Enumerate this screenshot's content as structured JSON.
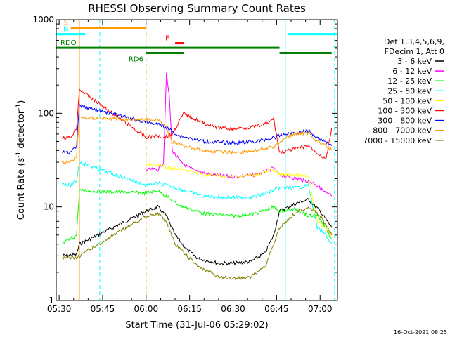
{
  "chart_data": {
    "type": "line",
    "title": "RHESSI Observing Summary Count Rates",
    "xlabel": "Start Time (31-Jul-06 05:29:02)",
    "ylabel_prefix": "Count Rate (s",
    "ylabel_sup": "-1",
    "ylabel_mid": " detector",
    "ylabel_suffix": ")",
    "y_scale": "log",
    "ylim": [
      1,
      1000
    ],
    "xlim": [
      "05:29",
      "07:06"
    ],
    "x_ticks": [
      "05:30",
      "05:45",
      "06:00",
      "06:15",
      "06:30",
      "06:45",
      "07:00"
    ],
    "y_ticks": [
      "1",
      "10",
      "100",
      "1000"
    ],
    "legend": {
      "placement": "right",
      "header_lines": [
        "Det 1,3,4,5,6,9,",
        "FDecim 1, Att 0"
      ]
    },
    "series": [
      {
        "name": "3 - 6 keV",
        "color": "#000000",
        "points": [
          [
            "05:31",
            3.0
          ],
          [
            "05:36",
            3.1
          ],
          [
            "05:37",
            4
          ],
          [
            "06:00",
            9
          ],
          [
            "06:04",
            10
          ],
          [
            "06:07",
            8
          ],
          [
            "06:10",
            5
          ],
          [
            "06:14",
            3.5
          ],
          [
            "06:18",
            2.8
          ],
          [
            "06:25",
            2.5
          ],
          [
            "06:30",
            2.5
          ],
          [
            "06:36",
            2.6
          ],
          [
            "06:41",
            3.2
          ],
          [
            "06:44",
            5
          ],
          [
            "06:46",
            9
          ],
          [
            "06:52",
            11
          ],
          [
            "06:56",
            12
          ],
          [
            "07:00",
            9
          ],
          [
            "07:04",
            6
          ]
        ]
      },
      {
        "name": "6 - 12 keV",
        "color": "#ff00ff",
        "points": [
          [
            "06:00",
            25
          ],
          [
            "06:04",
            25
          ],
          [
            "06:06",
            30
          ],
          [
            "06:07",
            260
          ],
          [
            "06:08",
            150
          ],
          [
            "06:09",
            40
          ],
          [
            "06:12",
            30
          ],
          [
            "06:15",
            26
          ],
          [
            "06:22",
            22
          ],
          [
            "06:30",
            21
          ],
          [
            "06:38",
            22
          ],
          [
            "06:44",
            26
          ],
          [
            "06:46",
            22
          ],
          [
            "06:52",
            20
          ],
          [
            "06:58",
            18
          ],
          [
            "07:02",
            14
          ],
          [
            "07:04",
            13
          ]
        ]
      },
      {
        "name": "12 - 25 keV",
        "color": "#00ff00",
        "points": [
          [
            "05:31",
            4.0
          ],
          [
            "05:36",
            5
          ],
          [
            "05:37",
            15
          ],
          [
            "06:00",
            14
          ],
          [
            "06:04",
            15
          ],
          [
            "06:07",
            13
          ],
          [
            "06:10",
            11
          ],
          [
            "06:13",
            10
          ],
          [
            "06:20",
            8.5
          ],
          [
            "06:30",
            8
          ],
          [
            "06:38",
            8.5
          ],
          [
            "06:44",
            10
          ],
          [
            "06:46",
            9
          ],
          [
            "06:52",
            9.5
          ],
          [
            "06:56",
            8
          ],
          [
            "06:59",
            8
          ],
          [
            "07:02",
            6
          ],
          [
            "07:04",
            4.5
          ]
        ]
      },
      {
        "name": "25 - 50 keV",
        "color": "#00ffff",
        "points": [
          [
            "05:31",
            18
          ],
          [
            "05:34",
            17
          ],
          [
            "05:36",
            19
          ],
          [
            "05:37",
            30
          ],
          [
            "06:00",
            17
          ],
          [
            "06:04",
            18
          ],
          [
            "06:07",
            17
          ],
          [
            "06:10",
            16
          ],
          [
            "06:13",
            15
          ],
          [
            "06:20",
            13
          ],
          [
            "06:30",
            12.5
          ],
          [
            "06:38",
            13
          ],
          [
            "06:44",
            15
          ],
          [
            "06:46",
            16
          ],
          [
            "06:52",
            16
          ],
          [
            "06:56",
            17
          ],
          [
            "06:59",
            6
          ],
          [
            "07:02",
            5
          ],
          [
            "07:04",
            4
          ]
        ]
      },
      {
        "name": "50 - 100 keV",
        "color": "#ffff00",
        "points": [
          [
            "06:00",
            28
          ],
          [
            "06:04",
            28
          ],
          [
            "06:08",
            26
          ],
          [
            "06:13",
            25
          ],
          [
            "06:20",
            22
          ],
          [
            "06:30",
            21
          ],
          [
            "06:38",
            22
          ],
          [
            "06:44",
            25
          ],
          [
            "06:46",
            22
          ],
          [
            "06:52",
            22
          ],
          [
            "06:56",
            21
          ],
          [
            "06:59",
            7
          ],
          [
            "07:02",
            6
          ],
          [
            "07:04",
            5
          ]
        ]
      },
      {
        "name": "100 - 300 keV",
        "color": "#ff0000",
        "points": [
          [
            "05:31",
            55
          ],
          [
            "05:34",
            55
          ],
          [
            "05:36",
            70
          ],
          [
            "05:37",
            180
          ],
          [
            "06:00",
            55
          ],
          [
            "06:04",
            58
          ],
          [
            "06:06",
            55
          ],
          [
            "06:09",
            60
          ],
          [
            "06:13",
            100
          ],
          [
            "06:16",
            90
          ],
          [
            "06:20",
            78
          ],
          [
            "06:25",
            70
          ],
          [
            "06:30",
            68
          ],
          [
            "06:38",
            72
          ],
          [
            "06:42",
            78
          ],
          [
            "06:44",
            88
          ],
          [
            "06:46",
            38
          ],
          [
            "06:52",
            42
          ],
          [
            "06:56",
            45
          ],
          [
            "06:59",
            38
          ],
          [
            "07:02",
            32
          ],
          [
            "07:04",
            70
          ]
        ]
      },
      {
        "name": "300 - 800 keV",
        "color": "#0000ff",
        "points": [
          [
            "05:31",
            38
          ],
          [
            "05:34",
            38
          ],
          [
            "05:36",
            45
          ],
          [
            "05:37",
            120
          ],
          [
            "06:00",
            80
          ],
          [
            "06:05",
            75
          ],
          [
            "06:09",
            65
          ],
          [
            "06:11",
            58
          ],
          [
            "06:14",
            55
          ],
          [
            "06:20",
            50
          ],
          [
            "06:30",
            48
          ],
          [
            "06:38",
            50
          ],
          [
            "06:44",
            55
          ],
          [
            "06:48",
            60
          ],
          [
            "06:52",
            62
          ],
          [
            "06:56",
            65
          ],
          [
            "06:59",
            55
          ],
          [
            "07:02",
            50
          ],
          [
            "07:04",
            45
          ]
        ]
      },
      {
        "name": "800 - 7000 keV",
        "color": "#ff9900",
        "points": [
          [
            "05:31",
            30
          ],
          [
            "05:34",
            30
          ],
          [
            "05:36",
            35
          ],
          [
            "05:37",
            90
          ],
          [
            "06:00",
            85
          ],
          [
            "06:04",
            85
          ],
          [
            "06:07",
            70
          ],
          [
            "06:09",
            50
          ],
          [
            "06:13",
            45
          ],
          [
            "06:20",
            40
          ],
          [
            "06:30",
            38
          ],
          [
            "06:38",
            40
          ],
          [
            "06:44",
            44
          ],
          [
            "06:48",
            55
          ],
          [
            "06:52",
            60
          ],
          [
            "06:56",
            62
          ],
          [
            "06:59",
            50
          ],
          [
            "07:02",
            45
          ],
          [
            "07:04",
            40
          ]
        ]
      },
      {
        "name": "7000 - 15000 keV",
        "color": "#808000",
        "points": [
          [
            "05:31",
            2.8
          ],
          [
            "05:36",
            2.9
          ],
          [
            "05:37",
            3
          ],
          [
            "06:00",
            8
          ],
          [
            "06:04",
            8.5
          ],
          [
            "06:07",
            7
          ],
          [
            "06:10",
            4
          ],
          [
            "06:14",
            3
          ],
          [
            "06:18",
            2.3
          ],
          [
            "06:25",
            1.8
          ],
          [
            "06:30",
            1.7
          ],
          [
            "06:36",
            1.8
          ],
          [
            "06:41",
            2.3
          ],
          [
            "06:44",
            4
          ],
          [
            "06:46",
            6
          ],
          [
            "06:52",
            9
          ],
          [
            "06:56",
            10
          ],
          [
            "07:00",
            8
          ],
          [
            "07:04",
            5
          ]
        ]
      }
    ],
    "bars": [
      {
        "label": "S",
        "color": "#ff9900",
        "y": 820,
        "segments": [
          [
            "05:34",
            "05:37"
          ],
          [
            "05:37",
            "06:00"
          ]
        ]
      },
      {
        "label": "N",
        "color": "#00ffff",
        "y": 700,
        "segments": [
          [
            "05:29",
            "05:39"
          ],
          [
            "06:49",
            "07:06"
          ]
        ]
      },
      {
        "label": "F",
        "color": "#ff0000",
        "y": 560,
        "segments": [
          [
            "06:10",
            "06:13"
          ]
        ]
      },
      {
        "label": "RDO",
        "color": "#008000",
        "y": 500,
        "segments": [
          [
            "05:29",
            "06:00"
          ],
          [
            "06:00",
            "06:46"
          ],
          [
            "07:05",
            "07:06"
          ]
        ]
      },
      {
        "label": "RD6",
        "color": "#008000",
        "y": 440,
        "segments": [
          [
            "06:00",
            "06:13"
          ],
          [
            "06:46",
            "07:04"
          ]
        ]
      }
    ],
    "vlines": [
      {
        "x": "05:37",
        "color": "#ff9900",
        "style": "solid"
      },
      {
        "x": "05:44",
        "color": "#00ffff",
        "style": "dashed"
      },
      {
        "x": "06:00",
        "color": "#ff9900",
        "style": "dashed"
      },
      {
        "x": "06:48",
        "color": "#00ffff",
        "style": "solid"
      },
      {
        "x": "07:05",
        "color": "#00ffff",
        "style": "dashed"
      }
    ]
  },
  "footer": {
    "date_stamp": "16-Oct-2021 08:25"
  }
}
